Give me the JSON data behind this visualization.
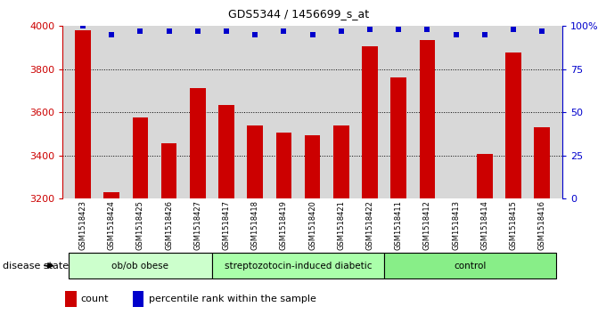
{
  "title": "GDS5344 / 1456699_s_at",
  "samples": [
    "GSM1518423",
    "GSM1518424",
    "GSM1518425",
    "GSM1518426",
    "GSM1518427",
    "GSM1518417",
    "GSM1518418",
    "GSM1518419",
    "GSM1518420",
    "GSM1518421",
    "GSM1518422",
    "GSM1518411",
    "GSM1518412",
    "GSM1518413",
    "GSM1518414",
    "GSM1518415",
    "GSM1518416"
  ],
  "counts": [
    3980,
    3228,
    3575,
    3455,
    3710,
    3635,
    3540,
    3505,
    3495,
    3540,
    3905,
    3760,
    3935,
    3200,
    3405,
    3875,
    3530
  ],
  "percentile_ranks": [
    100,
    95,
    97,
    97,
    97,
    97,
    95,
    97,
    95,
    97,
    98,
    98,
    98,
    95,
    95,
    98,
    97
  ],
  "bar_color": "#cc0000",
  "dot_color": "#0000cc",
  "groups": [
    {
      "label": "ob/ob obese",
      "start": 0,
      "end": 5,
      "color": "#ccffcc"
    },
    {
      "label": "streptozotocin-induced diabetic",
      "start": 5,
      "end": 11,
      "color": "#aaffaa"
    },
    {
      "label": "control",
      "start": 11,
      "end": 17,
      "color": "#88ee88"
    }
  ],
  "ymin": 3200,
  "ymax": 4000,
  "yticks_left": [
    3200,
    3400,
    3600,
    3800,
    4000
  ],
  "yticks_right": [
    0,
    25,
    50,
    75,
    100
  ],
  "ytick_right_labels": [
    "0",
    "25",
    "50",
    "75",
    "100%"
  ],
  "grid_values": [
    3400,
    3600,
    3800
  ],
  "plot_bg": "#d8d8d8",
  "fig_bg": "#ffffff"
}
